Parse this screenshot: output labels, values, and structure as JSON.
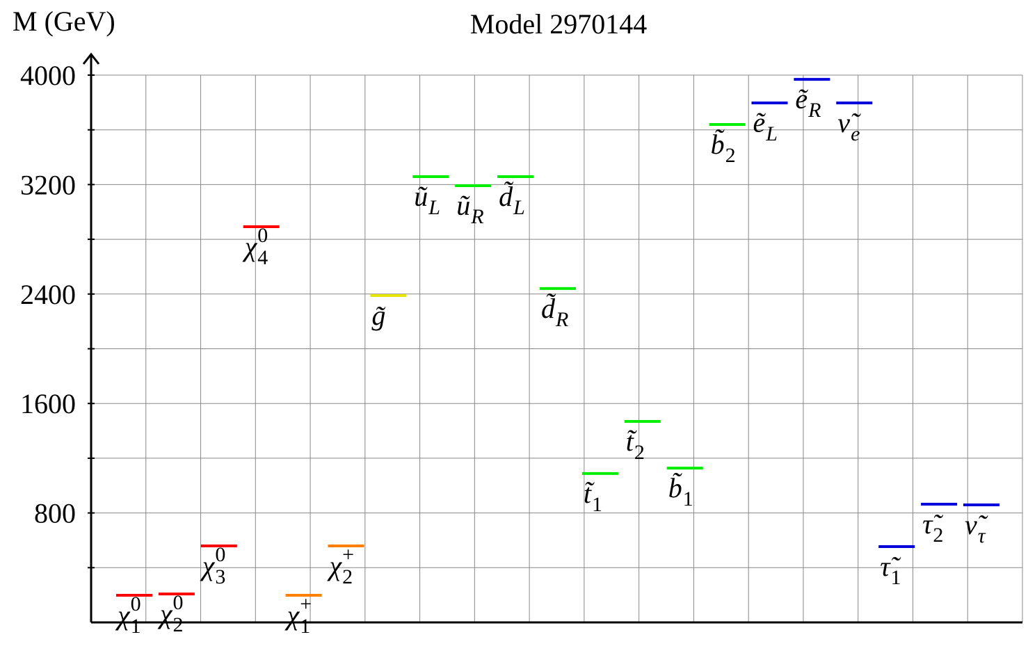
{
  "chart_data": {
    "type": "spectrum",
    "title": "Model 2970144",
    "y_label": "M (GeV)",
    "ylim": [
      0,
      4000
    ],
    "yticks": [
      800,
      1600,
      2400,
      3200,
      4000
    ],
    "minor_yticks": [
      400,
      1200,
      2000,
      2800,
      3600
    ],
    "grid": true,
    "particles": [
      {
        "symbol": "χ",
        "sub": "1",
        "sup": "0",
        "mass": 198,
        "color": "#ff0000"
      },
      {
        "symbol": "χ",
        "sub": "2",
        "sup": "0",
        "mass": 208,
        "color": "#ff0000"
      },
      {
        "symbol": "χ",
        "sub": "3",
        "sup": "0",
        "mass": 559,
        "color": "#ff0000"
      },
      {
        "symbol": "χ",
        "sub": "4",
        "sup": "0",
        "mass": 2892,
        "color": "#ff0000"
      },
      {
        "symbol": "χ",
        "sub": "1",
        "sup": "+",
        "mass": 198,
        "color": "#ff8000"
      },
      {
        "symbol": "χ",
        "sub": "2",
        "sup": "+",
        "mass": 559,
        "color": "#ff8000"
      },
      {
        "symbol": "g̃",
        "mass": 2389,
        "color": "#e6e600"
      },
      {
        "symbol": "ũ",
        "sub": "L",
        "mass": 3258,
        "color": "#00ee00"
      },
      {
        "symbol": "ũ",
        "sub": "R",
        "mass": 3192,
        "color": "#00ee00"
      },
      {
        "symbol": "d̃",
        "sub": "L",
        "mass": 3258,
        "color": "#00ee00"
      },
      {
        "symbol": "d̃",
        "sub": "R",
        "mass": 2440,
        "color": "#00ee00"
      },
      {
        "symbol": "t̃",
        "sub": "1",
        "mass": 1088,
        "color": "#00ee00"
      },
      {
        "symbol": "t̃",
        "sub": "2",
        "mass": 1469,
        "color": "#00ee00"
      },
      {
        "symbol": "b̃",
        "sub": "1",
        "mass": 1128,
        "color": "#00ee00"
      },
      {
        "symbol": "b̃",
        "sub": "2",
        "mass": 3639,
        "color": "#00ee00"
      },
      {
        "symbol": "ẽ",
        "sub": "L",
        "mass": 3797,
        "color": "#0000dd"
      },
      {
        "symbol": "ẽ",
        "sub": "R",
        "mass": 3969,
        "color": "#0000dd"
      },
      {
        "symbol": "ν̃",
        "sub": "e",
        "mass": 3797,
        "color": "#0000dd"
      },
      {
        "symbol": "τ̃",
        "sub": "1",
        "mass": 554,
        "color": "#0000dd"
      },
      {
        "symbol": "τ̃",
        "sub": "2",
        "mass": 864,
        "color": "#0000dd"
      },
      {
        "symbol": "ν̃",
        "sub": "τ",
        "mass": 859,
        "color": "#0000dd"
      }
    ]
  }
}
